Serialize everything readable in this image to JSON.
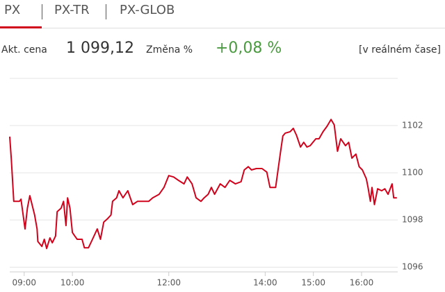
{
  "tabs": [
    "PX",
    "PX-TR",
    "PX-GLOB"
  ],
  "quote": {
    "price_label": "Akt. cena",
    "price": "1 099,12",
    "change_label": "Změna %",
    "change": "+0,08 %",
    "realtime": "[v reálném čase]"
  },
  "chart_data": {
    "type": "line",
    "color": "#d0021b",
    "grid": true,
    "x": [
      "08:42",
      "08:44",
      "08:47",
      "08:54",
      "08:56",
      "09:01",
      "09:04",
      "09:07",
      "09:13",
      "09:16",
      "09:17",
      "09:22",
      "09:25",
      "09:28",
      "09:32",
      "09:35",
      "09:39",
      "09:41",
      "09:46",
      "09:49",
      "09:52",
      "09:54",
      "09:57",
      "10:00",
      "10:03",
      "10:06",
      "10:12",
      "10:15",
      "10:20",
      "10:25",
      "10:31",
      "10:35",
      "10:39",
      "10:44",
      "10:48",
      "10:50",
      "10:55",
      "10:58",
      "11:03",
      "11:09",
      "11:15",
      "11:21",
      "11:27",
      "11:35",
      "11:40",
      "11:48",
      "11:54",
      "12:00",
      "12:06",
      "12:12",
      "12:19",
      "12:23",
      "12:29",
      "12:34",
      "12:40",
      "12:44",
      "12:49",
      "12:53",
      "12:57",
      "13:04",
      "13:10",
      "13:16",
      "13:23",
      "13:30",
      "13:34",
      "13:39",
      "13:43",
      "13:49",
      "13:56",
      "14:02",
      "14:06",
      "14:13",
      "14:19",
      "14:22",
      "14:25",
      "14:31",
      "14:35",
      "14:39",
      "14:44",
      "14:48",
      "14:52",
      "14:56",
      "15:03",
      "15:07",
      "15:12",
      "15:17",
      "15:22",
      "15:26",
      "15:30",
      "15:34",
      "15:40",
      "15:44",
      "15:48",
      "15:53",
      "15:57",
      "16:01",
      "16:06",
      "16:08",
      "16:11",
      "16:13",
      "16:16",
      "16:20",
      "16:25",
      "16:29",
      "16:33",
      "16:38",
      "16:40",
      "16:44"
    ],
    "values": [
      1101.53,
      1100.56,
      1098.79,
      1098.79,
      1098.88,
      1097.62,
      1098.5,
      1099.03,
      1098.21,
      1097.62,
      1097.09,
      1096.88,
      1097.18,
      1096.79,
      1097.24,
      1097.03,
      1097.32,
      1098.35,
      1098.5,
      1098.79,
      1097.76,
      1098.94,
      1098.5,
      1097.47,
      1097.32,
      1097.18,
      1097.18,
      1096.82,
      1096.82,
      1097.18,
      1097.62,
      1097.18,
      1097.91,
      1098.06,
      1098.21,
      1098.79,
      1098.94,
      1099.24,
      1098.94,
      1099.24,
      1098.65,
      1098.79,
      1098.79,
      1098.79,
      1098.94,
      1099.09,
      1099.38,
      1099.88,
      1099.82,
      1099.68,
      1099.53,
      1099.82,
      1099.53,
      1098.94,
      1098.79,
      1098.94,
      1099.09,
      1099.38,
      1099.09,
      1099.53,
      1099.38,
      1099.68,
      1099.53,
      1099.62,
      1100.12,
      1100.26,
      1100.12,
      1100.18,
      1100.18,
      1100.03,
      1099.38,
      1099.38,
      1100.85,
      1101.56,
      1101.68,
      1101.74,
      1101.88,
      1101.59,
      1101.09,
      1101.29,
      1101.09,
      1101.15,
      1101.44,
      1101.44,
      1101.74,
      1101.97,
      1102.26,
      1102.03,
      1100.91,
      1101.44,
      1101.15,
      1101.29,
      1100.62,
      1100.79,
      1100.26,
      1100.12,
      1099.74,
      1099.38,
      1098.79,
      1099.38,
      1098.65,
      1099.32,
      1099.24,
      1099.32,
      1099.09,
      1099.53,
      1098.94,
      1098.94
    ],
    "xlim": [
      "08:42",
      "16:45"
    ],
    "xticks": [
      "09:00",
      "10:00",
      "12:00",
      "14:00",
      "15:00",
      "16:00"
    ],
    "ylim": [
      1095.8,
      1104
    ],
    "yticks": [
      1096,
      1098,
      1100,
      1102
    ]
  }
}
